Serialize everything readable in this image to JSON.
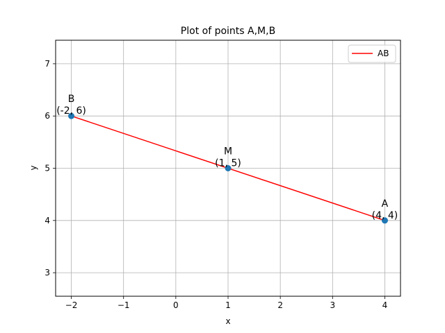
{
  "chart_data": {
    "type": "line",
    "title": "Plot of points A,M,B",
    "xlabel": "x",
    "ylabel": "y",
    "xlim": [
      -2.3,
      4.3
    ],
    "ylim": [
      2.55,
      7.45
    ],
    "xticks": [
      -2,
      -1,
      0,
      1,
      2,
      3,
      4
    ],
    "xtick_labels": [
      "−2",
      "−1",
      "0",
      "1",
      "2",
      "3",
      "4"
    ],
    "yticks": [
      3,
      4,
      5,
      6,
      7
    ],
    "ytick_labels": [
      "3",
      "4",
      "5",
      "6",
      "7"
    ],
    "grid": true,
    "legend": {
      "position": "top-right"
    },
    "series": [
      {
        "name": "AB",
        "type": "line",
        "color": "#ff0000",
        "x": [
          4,
          -2
        ],
        "y": [
          4,
          6
        ]
      }
    ],
    "points": [
      {
        "label": "B",
        "coord": "(-2, 6)",
        "x": -2,
        "y": 6
      },
      {
        "label": "M",
        "coord": "(1, 5)",
        "x": 1,
        "y": 5
      },
      {
        "label": "A",
        "coord": "(4, 4)",
        "x": 4,
        "y": 4
      }
    ],
    "point_color": "#1f77b4"
  }
}
